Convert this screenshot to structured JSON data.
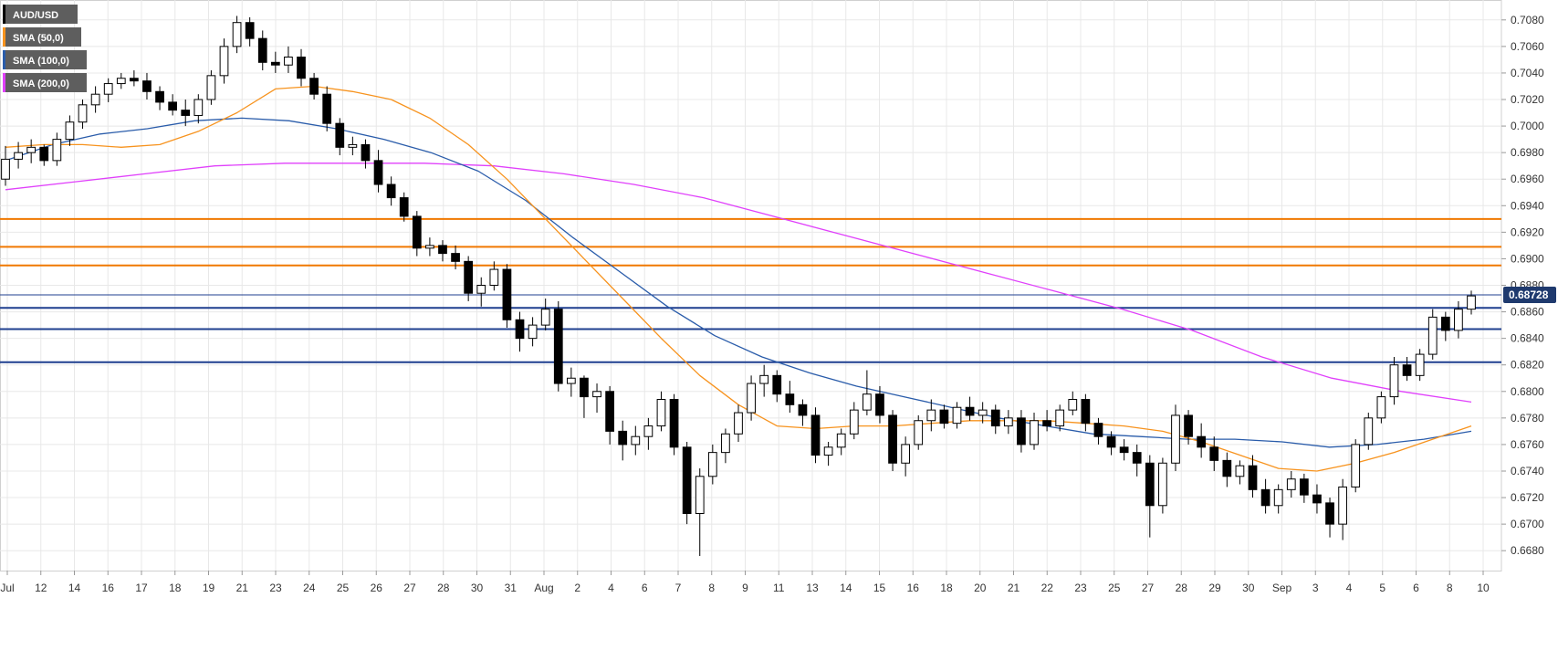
{
  "chart_data": {
    "type": "candlestick",
    "symbol": "AUD/USD",
    "legend": [
      {
        "label": "AUD/USD",
        "color": "#000000"
      },
      {
        "label": "SMA (50,0)",
        "color": "#f7931e"
      },
      {
        "label": "SMA (100,0)",
        "color": "#2a5caa"
      },
      {
        "label": "SMA (200,0)",
        "color": "#e040fb"
      }
    ],
    "colors": {
      "background": "#ffffff",
      "grid": "#e8e8e8",
      "up": "#ffffff",
      "down": "#000000",
      "wick": "#000000",
      "sma50": "#f7931e",
      "sma100": "#2a5caa",
      "sma200": "#e040fb",
      "resistance": "#f07800",
      "support": "#1f3f8f",
      "last_price_line": "#1f3f8f",
      "price_tag_bg": "#1f3a6e"
    },
    "y_axis": {
      "min": 0.6665,
      "max": 0.7095,
      "ticks": [
        "0.7080",
        "0.7060",
        "0.7040",
        "0.7020",
        "0.7000",
        "0.6980",
        "0.6960",
        "0.6940",
        "0.6920",
        "0.6900",
        "0.6880",
        "0.6860",
        "0.6840",
        "0.6820",
        "0.6800",
        "0.6780",
        "0.6760",
        "0.6740",
        "0.6720",
        "0.6700",
        "0.6680"
      ]
    },
    "x_axis": {
      "ticks": [
        "Jul",
        "12",
        "14",
        "16",
        "17",
        "18",
        "19",
        "21",
        "23",
        "24",
        "25",
        "26",
        "27",
        "28",
        "30",
        "31",
        "Aug",
        "2",
        "4",
        "6",
        "7",
        "8",
        "9",
        "11",
        "13",
        "14",
        "15",
        "16",
        "18",
        "20",
        "21",
        "22",
        "23",
        "25",
        "27",
        "28",
        "29",
        "30",
        "Sep",
        "3",
        "4",
        "5",
        "6",
        "8",
        "10"
      ]
    },
    "horizontal_levels": {
      "resistance": [
        0.693,
        0.6909,
        0.6895
      ],
      "support": [
        0.6863,
        0.6847,
        0.6822
      ]
    },
    "last_price": {
      "value": 0.68728,
      "label": "0.68728"
    },
    "ohlc": [
      [
        0.696,
        0.6985,
        0.6955,
        0.6975
      ],
      [
        0.6975,
        0.6988,
        0.6968,
        0.698
      ],
      [
        0.698,
        0.699,
        0.6972,
        0.6984
      ],
      [
        0.6984,
        0.6986,
        0.697,
        0.6974
      ],
      [
        0.6974,
        0.6995,
        0.697,
        0.699
      ],
      [
        0.699,
        0.7008,
        0.6985,
        0.7003
      ],
      [
        0.7003,
        0.702,
        0.6998,
        0.7016
      ],
      [
        0.7016,
        0.703,
        0.701,
        0.7024
      ],
      [
        0.7024,
        0.7036,
        0.7018,
        0.7032
      ],
      [
        0.7032,
        0.704,
        0.7028,
        0.7036
      ],
      [
        0.7036,
        0.7042,
        0.703,
        0.7034
      ],
      [
        0.7034,
        0.704,
        0.702,
        0.7026
      ],
      [
        0.7026,
        0.703,
        0.7012,
        0.7018
      ],
      [
        0.7018,
        0.7024,
        0.7008,
        0.7012
      ],
      [
        0.7012,
        0.702,
        0.7,
        0.7008
      ],
      [
        0.7008,
        0.7024,
        0.7002,
        0.702
      ],
      [
        0.702,
        0.7042,
        0.7016,
        0.7038
      ],
      [
        0.7038,
        0.7066,
        0.7032,
        0.706
      ],
      [
        0.706,
        0.7083,
        0.7055,
        0.7078
      ],
      [
        0.7078,
        0.7082,
        0.706,
        0.7066
      ],
      [
        0.7066,
        0.7072,
        0.7042,
        0.7048
      ],
      [
        0.7048,
        0.7056,
        0.704,
        0.7046
      ],
      [
        0.7046,
        0.706,
        0.704,
        0.7052
      ],
      [
        0.7052,
        0.7058,
        0.703,
        0.7036
      ],
      [
        0.7036,
        0.704,
        0.702,
        0.7024
      ],
      [
        0.7024,
        0.703,
        0.6996,
        0.7002
      ],
      [
        0.7002,
        0.7006,
        0.6978,
        0.6984
      ],
      [
        0.6984,
        0.6992,
        0.6978,
        0.6986
      ],
      [
        0.6986,
        0.699,
        0.6968,
        0.6974
      ],
      [
        0.6974,
        0.6982,
        0.695,
        0.6956
      ],
      [
        0.6956,
        0.6962,
        0.694,
        0.6946
      ],
      [
        0.6946,
        0.695,
        0.6928,
        0.6932
      ],
      [
        0.6932,
        0.6936,
        0.6902,
        0.6908
      ],
      [
        0.6908,
        0.6916,
        0.6902,
        0.691
      ],
      [
        0.691,
        0.6914,
        0.6898,
        0.6904
      ],
      [
        0.6904,
        0.691,
        0.6892,
        0.6898
      ],
      [
        0.6898,
        0.6902,
        0.6868,
        0.6874
      ],
      [
        0.6874,
        0.6886,
        0.6864,
        0.688
      ],
      [
        0.688,
        0.6898,
        0.6876,
        0.6892
      ],
      [
        0.6892,
        0.6896,
        0.6848,
        0.6854
      ],
      [
        0.6854,
        0.686,
        0.683,
        0.684
      ],
      [
        0.684,
        0.6856,
        0.6834,
        0.685
      ],
      [
        0.685,
        0.687,
        0.6846,
        0.6862
      ],
      [
        0.6862,
        0.6868,
        0.68,
        0.6806
      ],
      [
        0.6806,
        0.6818,
        0.6796,
        0.681
      ],
      [
        0.681,
        0.6812,
        0.678,
        0.6796
      ],
      [
        0.6796,
        0.6806,
        0.6784,
        0.68
      ],
      [
        0.68,
        0.6804,
        0.676,
        0.677
      ],
      [
        0.677,
        0.6778,
        0.6748,
        0.676
      ],
      [
        0.676,
        0.6774,
        0.6752,
        0.6766
      ],
      [
        0.6766,
        0.678,
        0.6756,
        0.6774
      ],
      [
        0.6774,
        0.68,
        0.677,
        0.6794
      ],
      [
        0.6794,
        0.6798,
        0.6752,
        0.6758
      ],
      [
        0.6758,
        0.6762,
        0.67,
        0.6708
      ],
      [
        0.6708,
        0.6742,
        0.6676,
        0.6736
      ],
      [
        0.6736,
        0.676,
        0.673,
        0.6754
      ],
      [
        0.6754,
        0.6772,
        0.6746,
        0.6768
      ],
      [
        0.6768,
        0.679,
        0.6762,
        0.6784
      ],
      [
        0.6784,
        0.6812,
        0.6778,
        0.6806
      ],
      [
        0.6806,
        0.682,
        0.6796,
        0.6812
      ],
      [
        0.6812,
        0.6816,
        0.6792,
        0.6798
      ],
      [
        0.6798,
        0.6808,
        0.6784,
        0.679
      ],
      [
        0.679,
        0.6794,
        0.6774,
        0.6782
      ],
      [
        0.6782,
        0.6788,
        0.6746,
        0.6752
      ],
      [
        0.6752,
        0.6762,
        0.6744,
        0.6758
      ],
      [
        0.6758,
        0.6772,
        0.6752,
        0.6768
      ],
      [
        0.6768,
        0.6792,
        0.6764,
        0.6786
      ],
      [
        0.6786,
        0.6816,
        0.6782,
        0.6798
      ],
      [
        0.6798,
        0.6804,
        0.6776,
        0.6782
      ],
      [
        0.6782,
        0.6786,
        0.674,
        0.6746
      ],
      [
        0.6746,
        0.6766,
        0.6736,
        0.676
      ],
      [
        0.676,
        0.6782,
        0.6756,
        0.6778
      ],
      [
        0.6778,
        0.6794,
        0.677,
        0.6786
      ],
      [
        0.6786,
        0.679,
        0.6772,
        0.6776
      ],
      [
        0.6776,
        0.6792,
        0.6772,
        0.6788
      ],
      [
        0.6788,
        0.6796,
        0.6778,
        0.6782
      ],
      [
        0.6782,
        0.6792,
        0.6776,
        0.6786
      ],
      [
        0.6786,
        0.679,
        0.6768,
        0.6774
      ],
      [
        0.6774,
        0.6786,
        0.6768,
        0.678
      ],
      [
        0.678,
        0.6786,
        0.6754,
        0.676
      ],
      [
        0.676,
        0.6784,
        0.6756,
        0.6778
      ],
      [
        0.6778,
        0.6786,
        0.677,
        0.6774
      ],
      [
        0.6774,
        0.679,
        0.677,
        0.6786
      ],
      [
        0.6786,
        0.68,
        0.6782,
        0.6794
      ],
      [
        0.6794,
        0.6798,
        0.677,
        0.6776
      ],
      [
        0.6776,
        0.678,
        0.676,
        0.6766
      ],
      [
        0.6766,
        0.677,
        0.6752,
        0.6758
      ],
      [
        0.6758,
        0.6764,
        0.6748,
        0.6754
      ],
      [
        0.6754,
        0.676,
        0.6736,
        0.6746
      ],
      [
        0.6746,
        0.6752,
        0.669,
        0.6714
      ],
      [
        0.6714,
        0.675,
        0.6708,
        0.6746
      ],
      [
        0.6746,
        0.679,
        0.674,
        0.6782
      ],
      [
        0.6782,
        0.6786,
        0.676,
        0.6766
      ],
      [
        0.6766,
        0.6776,
        0.675,
        0.6758
      ],
      [
        0.6758,
        0.6766,
        0.674,
        0.6748
      ],
      [
        0.6748,
        0.6754,
        0.6728,
        0.6736
      ],
      [
        0.6736,
        0.6748,
        0.673,
        0.6744
      ],
      [
        0.6744,
        0.6752,
        0.672,
        0.6726
      ],
      [
        0.6726,
        0.6734,
        0.6708,
        0.6714
      ],
      [
        0.6714,
        0.673,
        0.6708,
        0.6726
      ],
      [
        0.6726,
        0.674,
        0.672,
        0.6734
      ],
      [
        0.6734,
        0.6738,
        0.6716,
        0.6722
      ],
      [
        0.6722,
        0.673,
        0.6708,
        0.6716
      ],
      [
        0.6716,
        0.672,
        0.669,
        0.67
      ],
      [
        0.67,
        0.6734,
        0.6688,
        0.6728
      ],
      [
        0.6728,
        0.6764,
        0.6724,
        0.676
      ],
      [
        0.676,
        0.6784,
        0.6756,
        0.678
      ],
      [
        0.678,
        0.68,
        0.6776,
        0.6796
      ],
      [
        0.6796,
        0.6826,
        0.679,
        0.682
      ],
      [
        0.682,
        0.6826,
        0.6808,
        0.6812
      ],
      [
        0.6812,
        0.6832,
        0.6808,
        0.6828
      ],
      [
        0.6828,
        0.6862,
        0.6824,
        0.6856
      ],
      [
        0.6856,
        0.686,
        0.6838,
        0.6846
      ],
      [
        0.6846,
        0.6868,
        0.684,
        0.6862
      ],
      [
        0.6862,
        0.6876,
        0.6858,
        0.6872
      ]
    ],
    "sma50": [
      0.6984,
      0.6986,
      0.6986,
      0.6984,
      0.6986,
      0.6996,
      0.701,
      0.7028,
      0.703,
      0.7026,
      0.702,
      0.7006,
      0.6986,
      0.696,
      0.693,
      0.69,
      0.687,
      0.684,
      0.6812,
      0.679,
      0.6774,
      0.6772,
      0.6774,
      0.6774,
      0.6776,
      0.6778,
      0.6778,
      0.6778,
      0.6776,
      0.6774,
      0.677,
      0.6762,
      0.6752,
      0.6742,
      0.674,
      0.6746,
      0.6754,
      0.6764,
      0.6774
    ],
    "sma100": [
      0.6974,
      0.6986,
      0.6994,
      0.6998,
      0.7004,
      0.7006,
      0.7004,
      0.6998,
      0.699,
      0.698,
      0.6966,
      0.6944,
      0.6916,
      0.689,
      0.6864,
      0.6842,
      0.6826,
      0.6814,
      0.6804,
      0.6796,
      0.6788,
      0.678,
      0.6774,
      0.6768,
      0.6766,
      0.6764,
      0.6764,
      0.6762,
      0.6758,
      0.676,
      0.6764,
      0.677
    ],
    "sma200": [
      0.6952,
      0.6958,
      0.6964,
      0.697,
      0.6972,
      0.6972,
      0.6972,
      0.697,
      0.6964,
      0.6956,
      0.6946,
      0.6932,
      0.6918,
      0.6904,
      0.689,
      0.6876,
      0.6862,
      0.6846,
      0.6826,
      0.681,
      0.68,
      0.6792
    ]
  }
}
